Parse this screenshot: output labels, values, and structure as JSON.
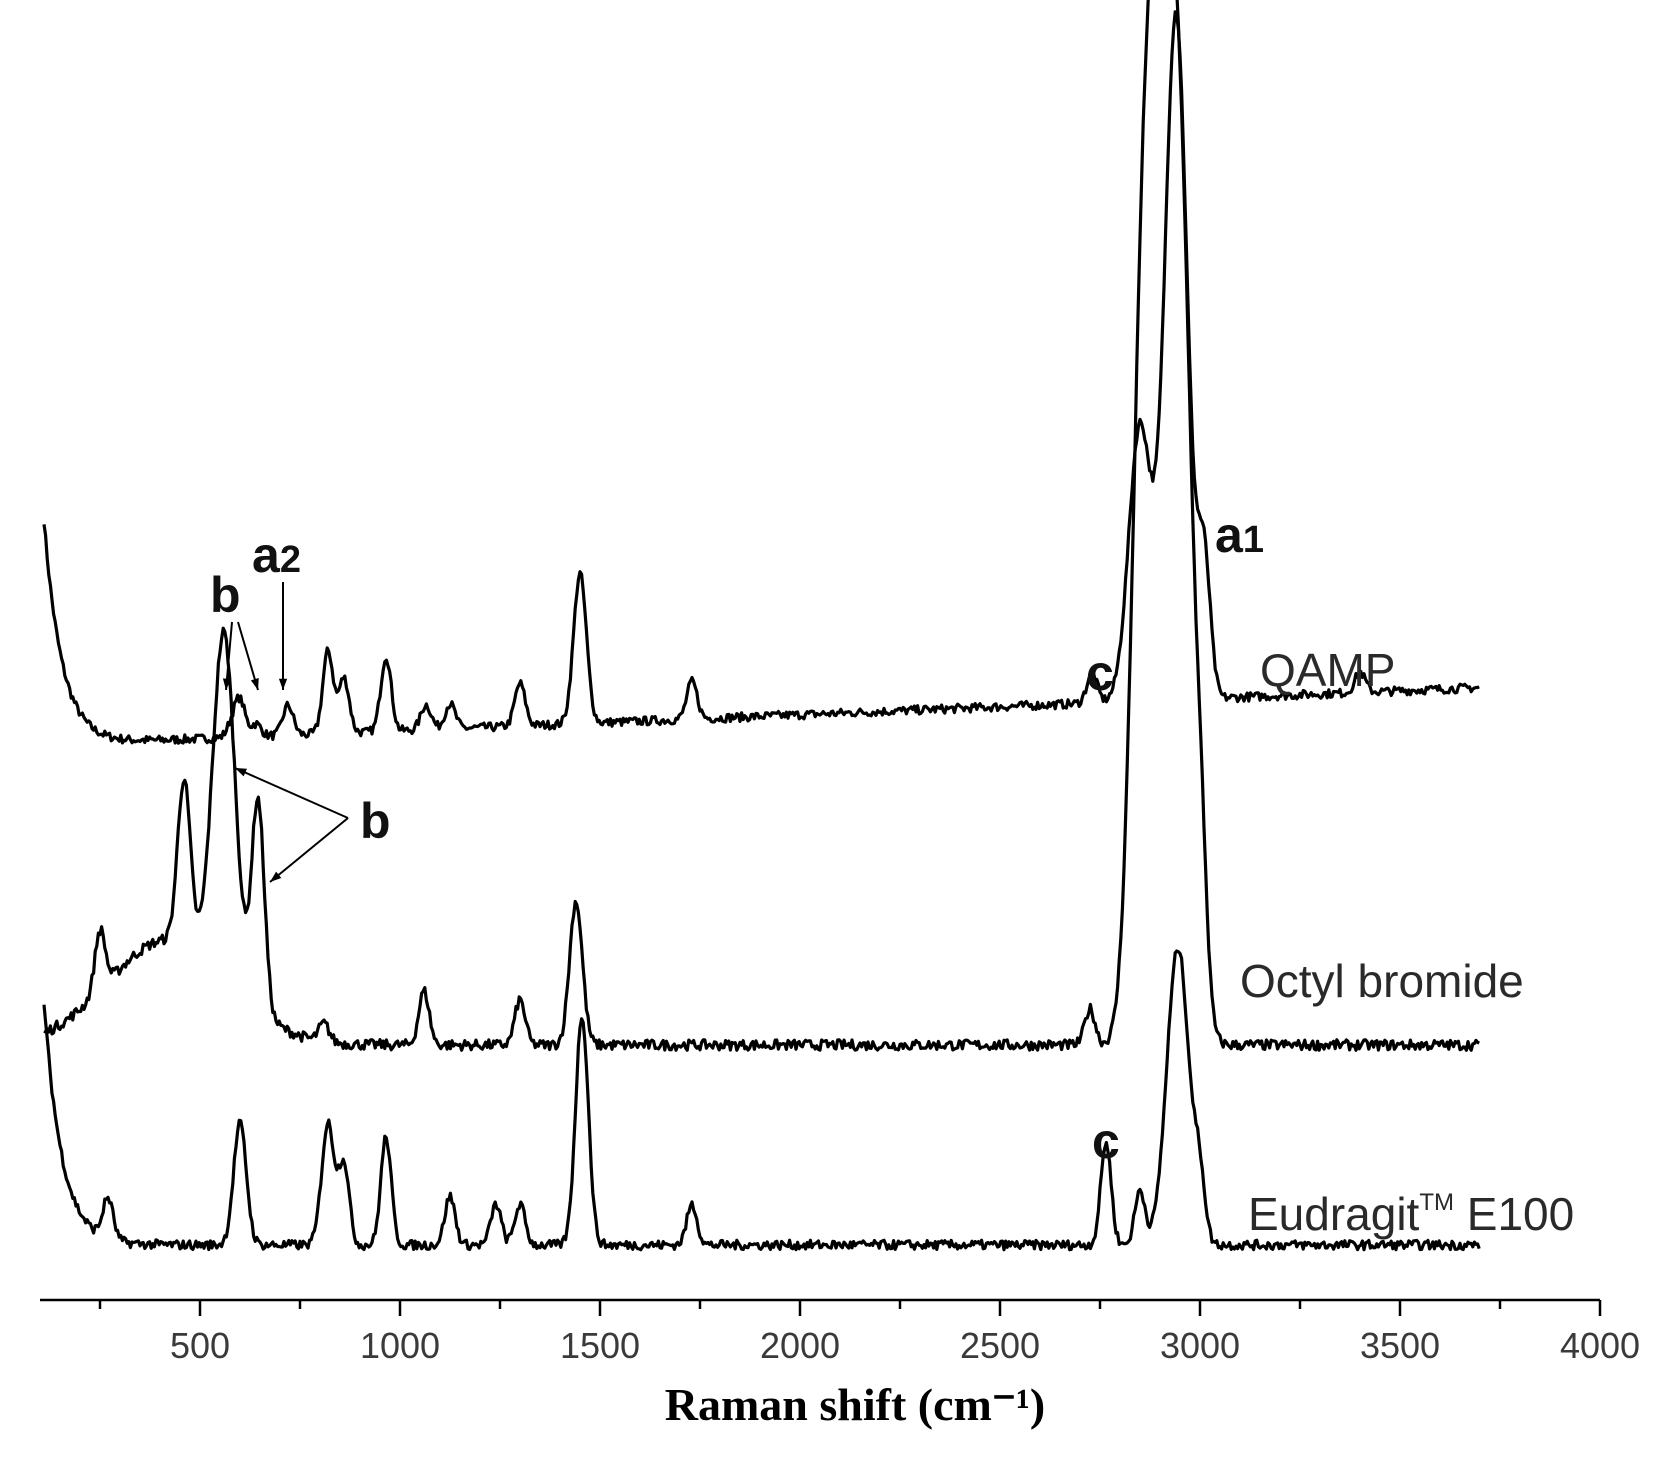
{
  "chart_data": {
    "type": "line",
    "title": "",
    "xlabel": "Raman shift (cm⁻¹)",
    "ylabel": "",
    "xlim": [
      100,
      4000
    ],
    "x_ticks": [
      500,
      1000,
      1500,
      2000,
      2500,
      3000,
      3500,
      4000
    ],
    "y_axis_shown": false,
    "grid": false,
    "series": [
      {
        "name": "QAMP",
        "label_parts": [
          "QAMP"
        ],
        "peaks": [
          {
            "x": 580,
            "h": 0.05
          },
          {
            "x": 600,
            "h": 0.14
          },
          {
            "x": 640,
            "h": 0.05
          },
          {
            "x": 720,
            "h": 0.12
          },
          {
            "x": 820,
            "h": 0.33
          },
          {
            "x": 860,
            "h": 0.22
          },
          {
            "x": 965,
            "h": 0.3
          },
          {
            "x": 1065,
            "h": 0.1
          },
          {
            "x": 1125,
            "h": 0.1
          },
          {
            "x": 1300,
            "h": 0.17
          },
          {
            "x": 1450,
            "h": 0.6
          },
          {
            "x": 1730,
            "h": 0.15
          },
          {
            "x": 2730,
            "h": 0.12
          },
          {
            "x": 2850,
            "h": 1.1
          },
          {
            "x": 2940,
            "h": 2.75
          },
          {
            "x": 3010,
            "h": 0.55
          },
          {
            "x": 3400,
            "h": 0.08
          }
        ]
      },
      {
        "name": "Octyl bromide",
        "label_parts": [
          "Octyl bromide"
        ],
        "peaks": [
          {
            "x": 250,
            "h": 0.2
          },
          {
            "x": 460,
            "h": 0.55
          },
          {
            "x": 560,
            "h": 1.15
          },
          {
            "x": 645,
            "h": 0.7
          },
          {
            "x": 810,
            "h": 0.06
          },
          {
            "x": 1060,
            "h": 0.18
          },
          {
            "x": 1300,
            "h": 0.15
          },
          {
            "x": 1440,
            "h": 0.48
          },
          {
            "x": 2725,
            "h": 0.12
          },
          {
            "x": 2855,
            "h": 2.1
          },
          {
            "x": 2895,
            "h": 2.15
          },
          {
            "x": 2930,
            "h": 2.0
          },
          {
            "x": 2965,
            "h": 1.6
          },
          {
            "x": 3005,
            "h": 0.28
          }
        ]
      },
      {
        "name": "Eudragit™ E100",
        "label_parts": [
          "Eudragit",
          "TM",
          " E100"
        ],
        "peaks": [
          {
            "x": 270,
            "h": 0.15
          },
          {
            "x": 600,
            "h": 0.45
          },
          {
            "x": 820,
            "h": 0.45
          },
          {
            "x": 860,
            "h": 0.3
          },
          {
            "x": 965,
            "h": 0.4
          },
          {
            "x": 1125,
            "h": 0.18
          },
          {
            "x": 1240,
            "h": 0.15
          },
          {
            "x": 1300,
            "h": 0.15
          },
          {
            "x": 1455,
            "h": 0.85
          },
          {
            "x": 1730,
            "h": 0.15
          },
          {
            "x": 2765,
            "h": 0.38
          },
          {
            "x": 2850,
            "h": 0.2
          },
          {
            "x": 2945,
            "h": 1.1
          },
          {
            "x": 3000,
            "h": 0.2
          }
        ]
      }
    ],
    "annotations": [
      {
        "text": "b",
        "series": "QAMP",
        "points_to": [
          600,
          640
        ]
      },
      {
        "text": "a2",
        "series": "QAMP",
        "points_to": [
          720
        ]
      },
      {
        "text": "c",
        "series": "QAMP",
        "points_to": [
          2730
        ]
      },
      {
        "text": "a1",
        "series": "QAMP",
        "points_to": [
          3010
        ]
      },
      {
        "text": "b",
        "series": "Octyl bromide",
        "points_to": [
          560,
          645
        ]
      },
      {
        "text": "c",
        "series": "Eudragit™ E100",
        "points_to": [
          2765
        ]
      }
    ]
  }
}
